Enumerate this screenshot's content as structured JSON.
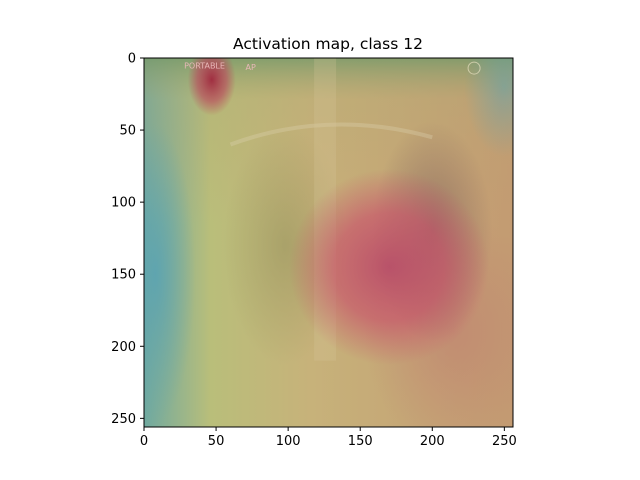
{
  "chart_data": {
    "type": "heatmap",
    "title": "Activation map, class 12",
    "xlabel": "",
    "ylabel": "",
    "xlim": [
      0,
      256
    ],
    "ylim": [
      256,
      0
    ],
    "xticks": [
      0,
      50,
      100,
      150,
      200,
      250
    ],
    "yticks": [
      0,
      50,
      100,
      150,
      200,
      250
    ],
    "xtick_labels": [
      "0",
      "50",
      "100",
      "150",
      "200",
      "250"
    ],
    "ytick_labels": [
      "0",
      "50",
      "100",
      "150",
      "200",
      "250"
    ],
    "grid": false,
    "image_content": "chest x-ray overlaid with activation heatmap",
    "hotspots": [
      {
        "x": 170,
        "y": 145,
        "level": 0.95
      },
      {
        "x": 47,
        "y": 15,
        "level": 0.9
      }
    ],
    "image_annotations": [
      {
        "text": "PORTABLE",
        "x": 42,
        "y": 3
      },
      {
        "text": "AP",
        "x": 74,
        "y": 4
      }
    ],
    "colors": {
      "hot": "#c8405a",
      "warm": "#c49a6c",
      "mid": "#c9c57a",
      "cool": "#6aa6a8"
    }
  }
}
